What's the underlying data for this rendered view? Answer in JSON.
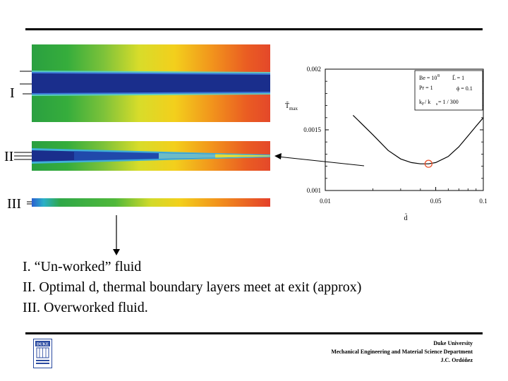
{
  "labels": {
    "regime_1": "I",
    "regime_2": "II",
    "regime_3": "III"
  },
  "captions": [
    "I.  “Un-worked” fluid",
    "II.  Optimal d, thermal boundary layers meet at exit (approx)",
    "III. Overworked fluid."
  ],
  "footer": {
    "line1": "Duke University",
    "line2": "Mechanical Engineering and Material Science Department",
    "line3": "J.C. Ordóñez"
  },
  "logo": {
    "text": "DUKE"
  },
  "colors": {
    "cold": "#1a2e8c",
    "marker": "#e8502a"
  },
  "chart_data": {
    "type": "line",
    "xscale": "log",
    "x": [
      0.015,
      0.02,
      0.025,
      0.03,
      0.035,
      0.04,
      0.045,
      0.05,
      0.06,
      0.07,
      0.08,
      0.09,
      0.1
    ],
    "series": [
      {
        "values": [
          0.00162,
          0.00146,
          0.00133,
          0.00126,
          0.00123,
          0.00122,
          0.00122,
          0.00123,
          0.00128,
          0.00136,
          0.00145,
          0.00153,
          0.0016
        ]
      }
    ],
    "highlight": {
      "x": 0.045,
      "y": 0.00122
    },
    "xlim": [
      0.01,
      0.1
    ],
    "ylim": [
      0.001,
      0.002
    ],
    "xticks": [
      "0.01",
      "0.05",
      "0.1"
    ],
    "yticks": [
      "0.001",
      "0.0015",
      "0.002"
    ],
    "xlabel": "d̃",
    "ylabel": "T̃",
    "ylabel_sub": "max",
    "legend_box": {
      "be": "Be = 10",
      "be_exp": "8",
      "pr": "Pr = 1",
      "L": "L̃ = 1",
      "phi": "ϕ = 0.1",
      "k": "k",
      "k_sub1": "F",
      "k_mid": " / k",
      "k_sub2": "s",
      "k_end": " = 1 / 300"
    }
  }
}
